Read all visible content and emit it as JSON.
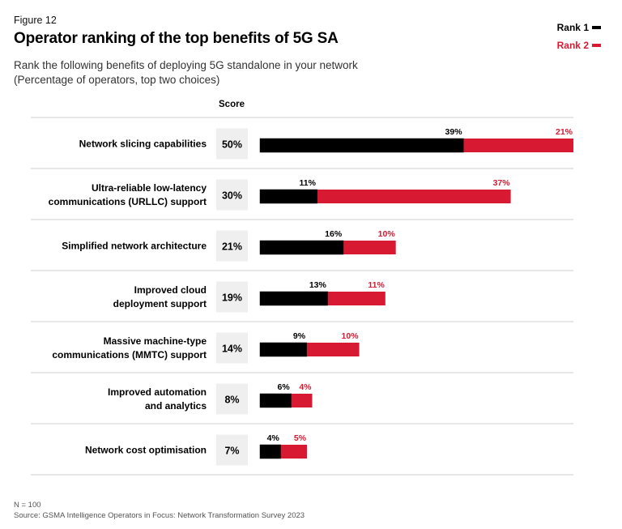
{
  "figure_label": "Figure 12",
  "title": "Operator ranking of the top benefits of 5G SA",
  "subtitle_lines": [
    "Rank the following benefits of deploying 5G standalone in your network",
    "(Percentage of operators, top two choices)"
  ],
  "score_header": "Score",
  "legend": [
    {
      "label": "Rank 1",
      "color": "#000000"
    },
    {
      "label": "Rank 2",
      "color": "#d71a32"
    }
  ],
  "footer": {
    "note": "N = 100",
    "source": "Source: GSMA Intelligence Operators in Focus: Network Transformation Survey 2023"
  },
  "colors": {
    "rank1": "#000000",
    "rank2": "#d71a32",
    "rank2_label": "#d71a32",
    "score_bg": "#efefef",
    "divider": "#cfcfcf"
  },
  "chart_data": {
    "type": "bar",
    "orientation": "horizontal",
    "stacked": true,
    "categories": [
      [
        "Network slicing capabilities"
      ],
      [
        "Ultra-reliable low-latency",
        "communications (URLLC) support"
      ],
      [
        "Simplified network architecture"
      ],
      [
        "Improved cloud",
        "deployment support"
      ],
      [
        "Massive machine-type",
        "communications (MMTC) support"
      ],
      [
        "Improved automation",
        "and analytics"
      ],
      [
        "Network cost optimisation"
      ]
    ],
    "scores": [
      "50%",
      "30%",
      "21%",
      "19%",
      "14%",
      "8%",
      "7%"
    ],
    "series": [
      {
        "name": "Rank 1",
        "values": [
          39,
          11,
          16,
          13,
          9,
          6,
          4
        ],
        "labels": [
          "39%",
          "11%",
          "16%",
          "13%",
          "9%",
          "6%",
          "4%"
        ]
      },
      {
        "name": "Rank 2",
        "values": [
          21,
          37,
          10,
          11,
          10,
          4,
          5
        ],
        "labels": [
          "21%",
          "37%",
          "10%",
          "11%",
          "10%",
          "4%",
          "5%"
        ]
      }
    ],
    "xlim": [
      0,
      60
    ],
    "grid": false
  }
}
